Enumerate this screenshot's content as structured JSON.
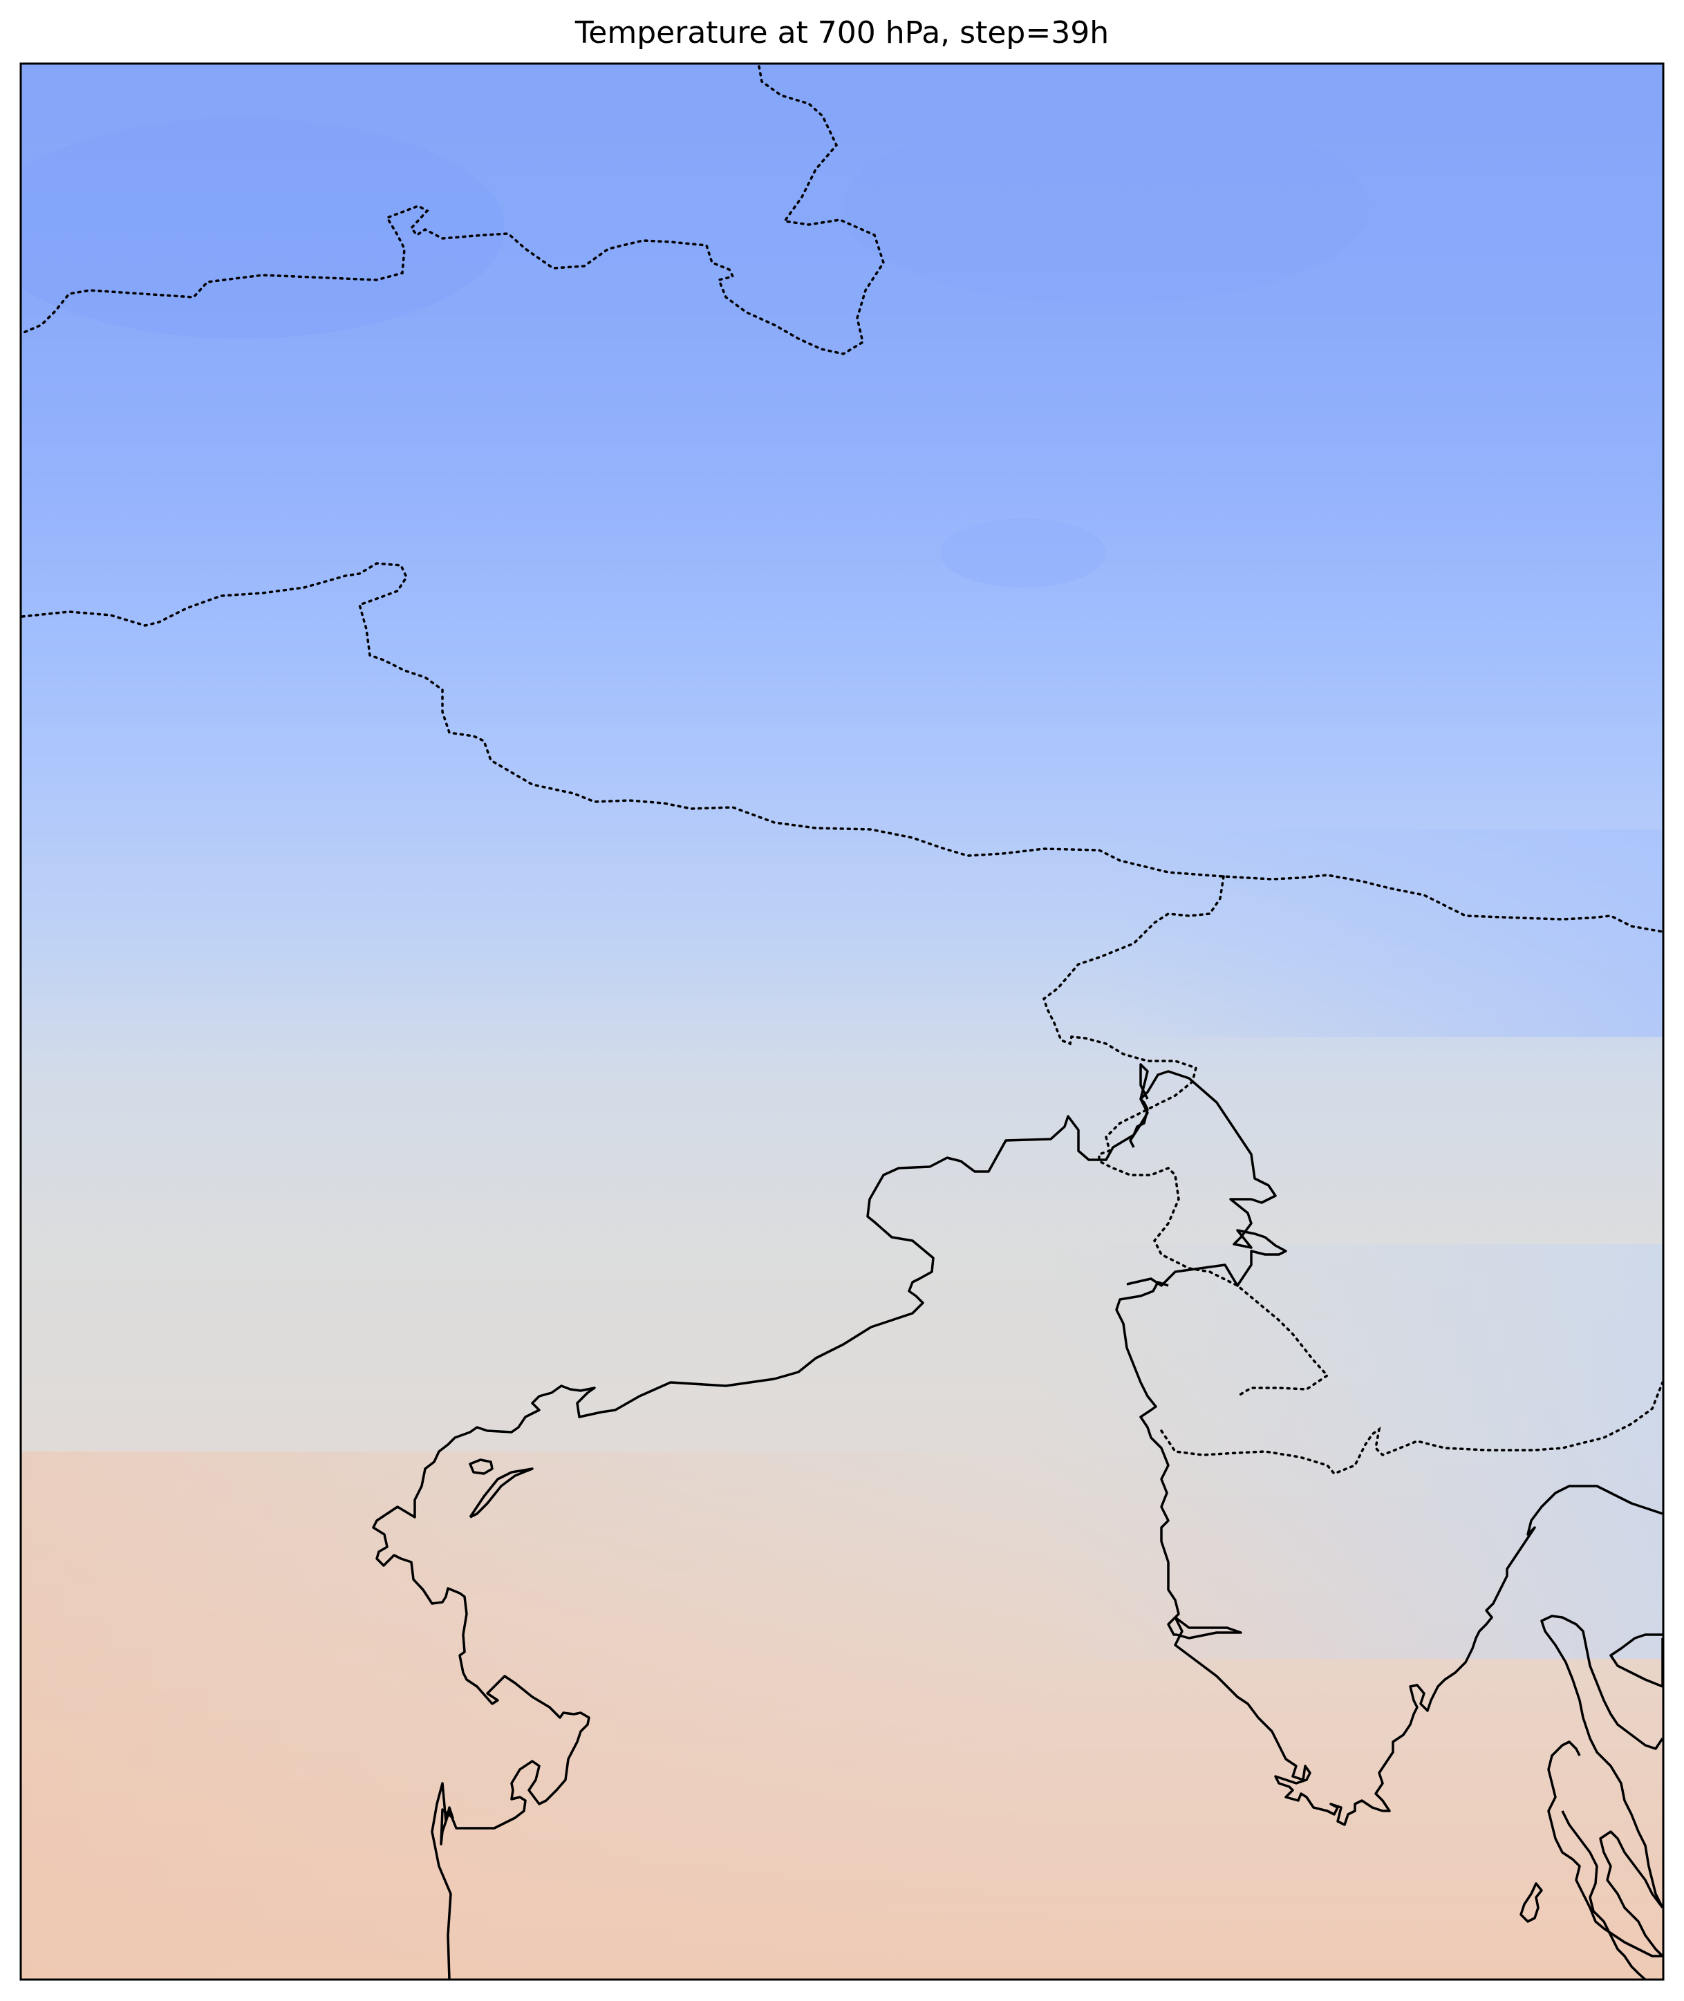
{
  "map": {
    "title": "Temperature at 700 hPa, step=39h",
    "field": "temperature",
    "level": "700 hPa",
    "step": "39h",
    "colormap": "coolwarm",
    "colors": {
      "cold_deep": "#85a6f9",
      "cold": "#9ab8fe",
      "cool": "#b8d0f9",
      "neutral": "#dcdddd",
      "warm": "#e9d5cb",
      "warm_deep": "#efcbb6",
      "coastline": "#000000",
      "border": "#000000",
      "frame": "#000000"
    },
    "features": [
      "coastline-solid",
      "border-dotted"
    ]
  }
}
